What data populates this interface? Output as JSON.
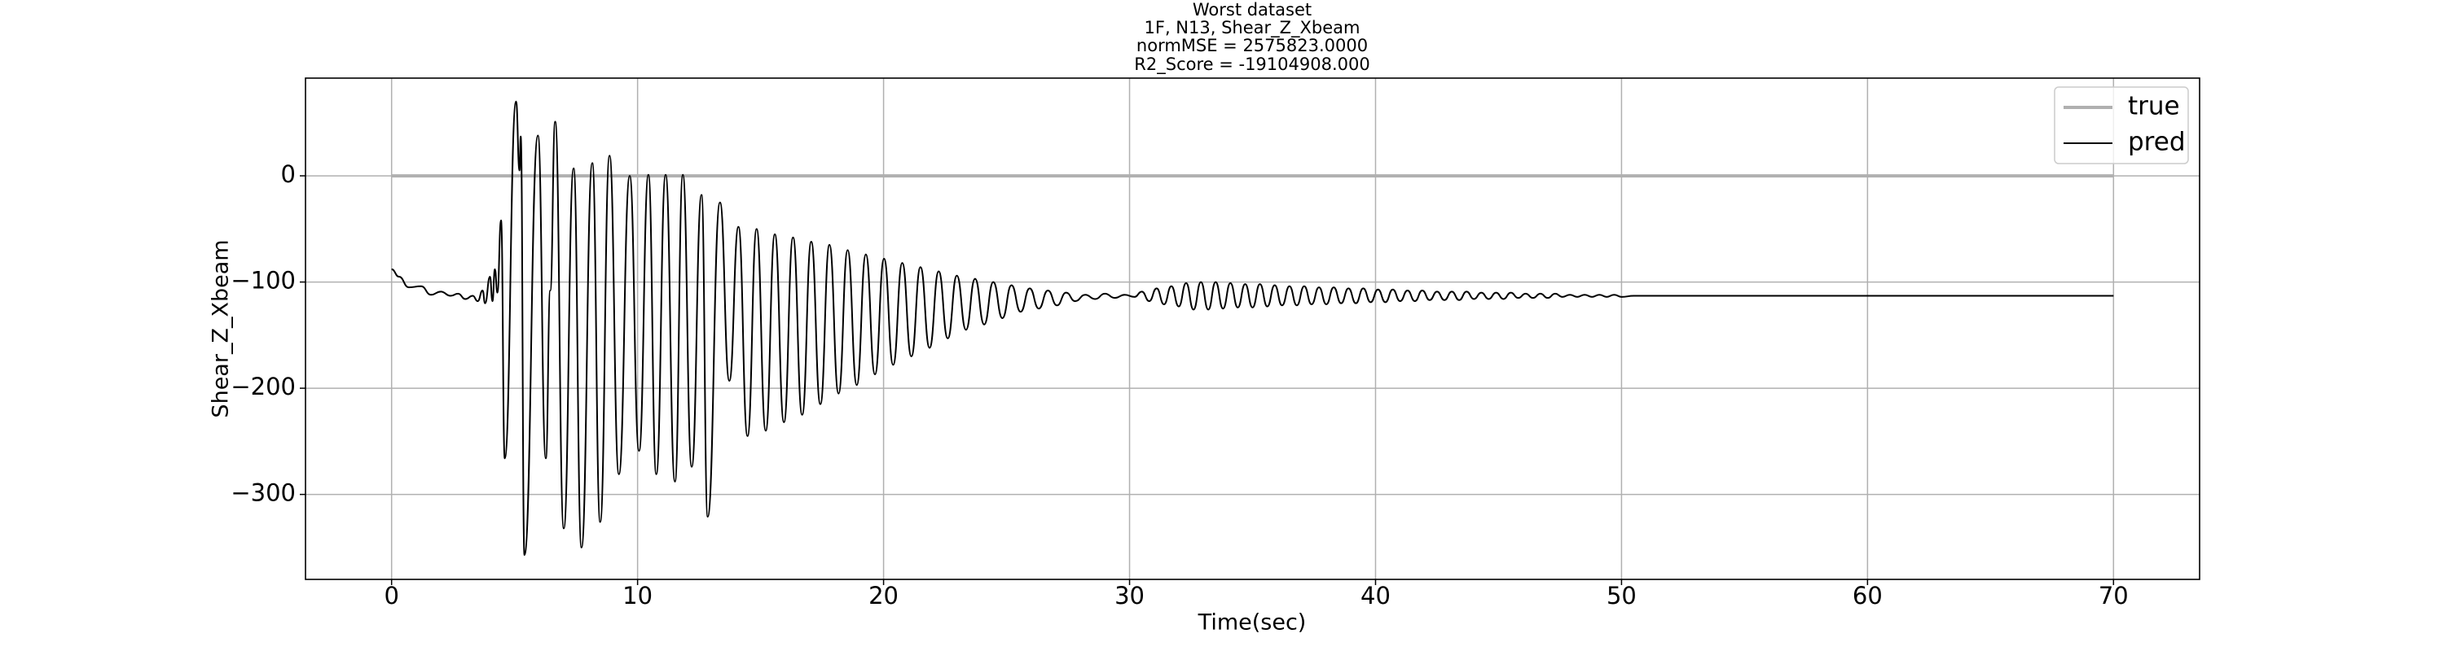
{
  "chart_data": {
    "type": "line",
    "title": [
      "Worst dataset",
      "1F, N13, Shear_Z_Xbeam",
      "normMSE = 2575823.0000",
      "R2_Score = -19104908.000"
    ],
    "x_label": "Time(sec)",
    "y_label": "Shear_Z_Xbeam",
    "xlim": [
      -3.5,
      73.5
    ],
    "ylim": [
      -380,
      92
    ],
    "xticks": [
      0,
      10,
      20,
      30,
      40,
      50,
      60,
      70
    ],
    "yticks": [
      {
        "value": -300,
        "label": "−300"
      },
      {
        "value": -200,
        "label": "−200"
      },
      {
        "value": -100,
        "label": "−100"
      },
      0
    ],
    "grid": true,
    "legend": "upper right",
    "series": [
      {
        "name": "true",
        "color": "#b0b0b0",
        "x": [
          0,
          70
        ],
        "values": [
          0,
          0
        ]
      },
      {
        "name": "pred",
        "color": "#000000",
        "x": [
          0,
          0.3,
          0.7,
          1.2,
          1.6,
          2.0,
          2.4,
          2.7,
          3.0,
          3.3,
          3.5,
          3.7,
          3.8,
          4.0,
          4.1,
          4.2,
          4.3,
          4.45,
          4.6,
          5.06,
          5.2,
          5.25,
          5.4,
          5.95,
          6.27,
          6.45,
          6.65,
          7.0,
          7.4,
          7.72,
          8.16,
          8.48,
          8.86,
          9.24,
          9.68,
          10.06,
          10.44,
          10.76,
          11.14,
          11.52,
          11.84,
          12.2,
          12.6,
          12.85,
          13.35,
          13.73,
          14.1,
          14.47,
          14.84,
          15.21,
          15.58,
          15.95,
          16.32,
          16.69,
          17.06,
          17.43,
          17.8,
          18.17,
          18.54,
          18.91,
          19.28,
          19.65,
          20.02,
          20.39,
          20.76,
          21.13,
          21.5,
          21.87,
          22.24,
          22.61,
          22.98,
          23.35,
          23.72,
          24.09,
          24.46,
          24.83,
          25.2,
          25.57,
          25.94,
          26.31,
          26.68,
          27.05,
          27.42,
          27.79,
          28.2,
          28.6,
          29.0,
          29.4,
          29.8,
          30.2,
          30.5,
          30.8,
          31.1,
          31.4,
          31.7,
          32.0,
          32.3,
          32.6,
          32.9,
          33.2,
          33.5,
          33.8,
          34.1,
          34.4,
          34.7,
          35.0,
          35.3,
          35.6,
          35.9,
          36.2,
          36.5,
          36.8,
          37.1,
          37.4,
          37.7,
          38.0,
          38.3,
          38.6,
          38.9,
          39.2,
          39.5,
          39.8,
          40.1,
          40.4,
          40.7,
          41.0,
          41.3,
          41.6,
          41.9,
          42.2,
          42.5,
          42.8,
          43.1,
          43.4,
          43.7,
          44.0,
          44.3,
          44.6,
          44.9,
          45.2,
          45.5,
          45.8,
          46.1,
          46.4,
          46.7,
          47.0,
          47.3,
          47.6,
          47.9,
          48.2,
          48.5,
          48.8,
          49.1,
          49.4,
          49.7,
          50.0,
          50.5,
          70
        ],
        "values": [
          -88,
          -95,
          -105,
          -104,
          -112,
          -109,
          -113,
          -111,
          -116,
          -113,
          -118,
          -108,
          -120,
          -95,
          -118,
          -88,
          -110,
          -42,
          -266,
          70,
          5,
          37,
          -357,
          38,
          -266,
          -108,
          51,
          -332,
          7,
          -350,
          12,
          -326,
          19,
          -281,
          0,
          -259,
          1,
          -281,
          1,
          -288,
          1,
          -274,
          -18,
          -321,
          -25,
          -193,
          -48,
          -245,
          -50,
          -240,
          -55,
          -232,
          -58,
          -225,
          -62,
          -215,
          -65,
          -205,
          -70,
          -197,
          -74,
          -187,
          -78,
          -178,
          -82,
          -170,
          -86,
          -162,
          -90,
          -153,
          -94,
          -145,
          -97,
          -140,
          -100,
          -134,
          -103,
          -128,
          -106,
          -125,
          -108,
          -122,
          -110,
          -118,
          -112,
          -116,
          -111,
          -115,
          -112,
          -114,
          -109,
          -118,
          -106,
          -121,
          -104,
          -123,
          -101,
          -126,
          -100,
          -126,
          -100,
          -125,
          -101,
          -124,
          -102,
          -124,
          -102,
          -123,
          -103,
          -122,
          -104,
          -122,
          -104,
          -121,
          -105,
          -121,
          -105,
          -120,
          -106,
          -120,
          -106,
          -119,
          -107,
          -119,
          -107,
          -118,
          -108,
          -118,
          -108,
          -117,
          -109,
          -117,
          -109,
          -117,
          -109,
          -116,
          -110,
          -116,
          -110,
          -116,
          -110,
          -115,
          -111,
          -115,
          -111,
          -115,
          -111,
          -114,
          -112,
          -114,
          -112,
          -114,
          -112,
          -114,
          -112,
          -114,
          -113,
          -113
        ]
      }
    ]
  }
}
